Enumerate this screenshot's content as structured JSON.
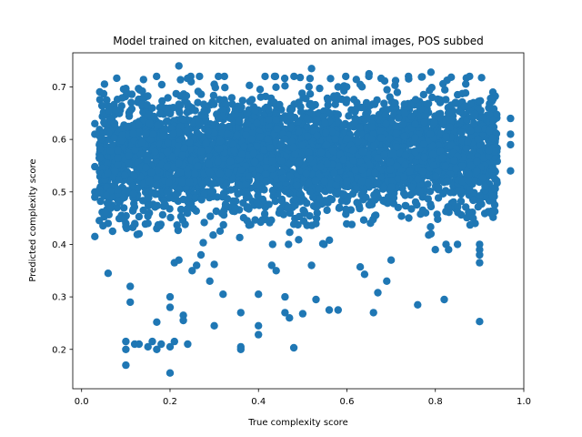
{
  "chart_data": {
    "type": "scatter",
    "title": "Model trained on kitchen, evaluated on animal images, POS subbed",
    "xlabel": "True complexity score",
    "ylabel": "Predicted complexity score",
    "xlim": [
      -0.02,
      1.0
    ],
    "ylim": [
      0.125,
      0.765
    ],
    "xticks": [
      0.0,
      0.2,
      0.4,
      0.6,
      0.8,
      1.0
    ],
    "xtick_labels": [
      "0.0",
      "0.2",
      "0.4",
      "0.6",
      "0.8",
      "1.0"
    ],
    "yticks": [
      0.2,
      0.3,
      0.4,
      0.5,
      0.6,
      0.7
    ],
    "ytick_labels": [
      "0.2",
      "0.3",
      "0.4",
      "0.5",
      "0.6",
      "0.7"
    ],
    "grid": false,
    "legend": "none",
    "marker_color": "#1f77b4",
    "points": [
      [
        0.22,
        0.74
      ],
      [
        0.52,
        0.735
      ],
      [
        0.65,
        0.725
      ],
      [
        0.79,
        0.728
      ],
      [
        0.05,
        0.687
      ],
      [
        0.1,
        0.697
      ],
      [
        0.14,
        0.714
      ],
      [
        0.3,
        0.705
      ],
      [
        0.46,
        0.702
      ],
      [
        0.58,
        0.7
      ],
      [
        0.71,
        0.712
      ],
      [
        0.87,
        0.717
      ],
      [
        0.93,
        0.69
      ],
      [
        0.97,
        0.64
      ],
      [
        0.97,
        0.61
      ],
      [
        0.97,
        0.59
      ],
      [
        0.97,
        0.54
      ],
      [
        0.93,
        0.482
      ],
      [
        0.03,
        0.63
      ],
      [
        0.03,
        0.61
      ],
      [
        0.03,
        0.548
      ],
      [
        0.03,
        0.5
      ],
      [
        0.03,
        0.49
      ],
      [
        0.03,
        0.415
      ],
      [
        0.07,
        0.425
      ],
      [
        0.06,
        0.345
      ],
      [
        0.11,
        0.32
      ],
      [
        0.11,
        0.29
      ],
      [
        0.1,
        0.215
      ],
      [
        0.1,
        0.2
      ],
      [
        0.1,
        0.17
      ],
      [
        0.12,
        0.21
      ],
      [
        0.13,
        0.21
      ],
      [
        0.15,
        0.205
      ],
      [
        0.16,
        0.215
      ],
      [
        0.17,
        0.2
      ],
      [
        0.17,
        0.252
      ],
      [
        0.18,
        0.21
      ],
      [
        0.2,
        0.3
      ],
      [
        0.2,
        0.28
      ],
      [
        0.2,
        0.205
      ],
      [
        0.21,
        0.215
      ],
      [
        0.23,
        0.265
      ],
      [
        0.23,
        0.255
      ],
      [
        0.24,
        0.21
      ],
      [
        0.2,
        0.155
      ],
      [
        0.22,
        0.37
      ],
      [
        0.21,
        0.365
      ],
      [
        0.25,
        0.35
      ],
      [
        0.26,
        0.36
      ],
      [
        0.27,
        0.38
      ],
      [
        0.29,
        0.33
      ],
      [
        0.3,
        0.362
      ],
      [
        0.3,
        0.245
      ],
      [
        0.32,
        0.305
      ],
      [
        0.36,
        0.27
      ],
      [
        0.36,
        0.205
      ],
      [
        0.36,
        0.2
      ],
      [
        0.4,
        0.305
      ],
      [
        0.4,
        0.245
      ],
      [
        0.4,
        0.228
      ],
      [
        0.43,
        0.36
      ],
      [
        0.44,
        0.35
      ],
      [
        0.46,
        0.3
      ],
      [
        0.46,
        0.27
      ],
      [
        0.47,
        0.26
      ],
      [
        0.48,
        0.203
      ],
      [
        0.5,
        0.268
      ],
      [
        0.52,
        0.36
      ],
      [
        0.53,
        0.295
      ],
      [
        0.56,
        0.275
      ],
      [
        0.58,
        0.275
      ],
      [
        0.63,
        0.357
      ],
      [
        0.64,
        0.343
      ],
      [
        0.66,
        0.27
      ],
      [
        0.67,
        0.308
      ],
      [
        0.69,
        0.33
      ],
      [
        0.7,
        0.37
      ],
      [
        0.76,
        0.285
      ],
      [
        0.82,
        0.295
      ],
      [
        0.9,
        0.4
      ],
      [
        0.9,
        0.39
      ],
      [
        0.9,
        0.38
      ],
      [
        0.9,
        0.365
      ],
      [
        0.9,
        0.253
      ],
      [
        0.89,
        0.44
      ],
      [
        0.88,
        0.455
      ],
      [
        0.85,
        0.4
      ],
      [
        0.83,
        0.39
      ],
      [
        0.8,
        0.39
      ],
      [
        0.79,
        0.42
      ],
      [
        0.09,
        0.455
      ],
      [
        0.1,
        0.44
      ],
      [
        0.13,
        0.42
      ],
      [
        0.15,
        0.44
      ],
      [
        0.17,
        0.43
      ],
      [
        0.06,
        0.44
      ],
      [
        0.08,
        0.47
      ],
      [
        0.06,
        0.49
      ],
      [
        0.05,
        0.52
      ]
    ],
    "dense_region": {
      "x_range": [
        0.04,
        0.94
      ],
      "y_range": [
        0.4,
        0.72
      ],
      "center": 0.57,
      "count": 3800
    }
  }
}
